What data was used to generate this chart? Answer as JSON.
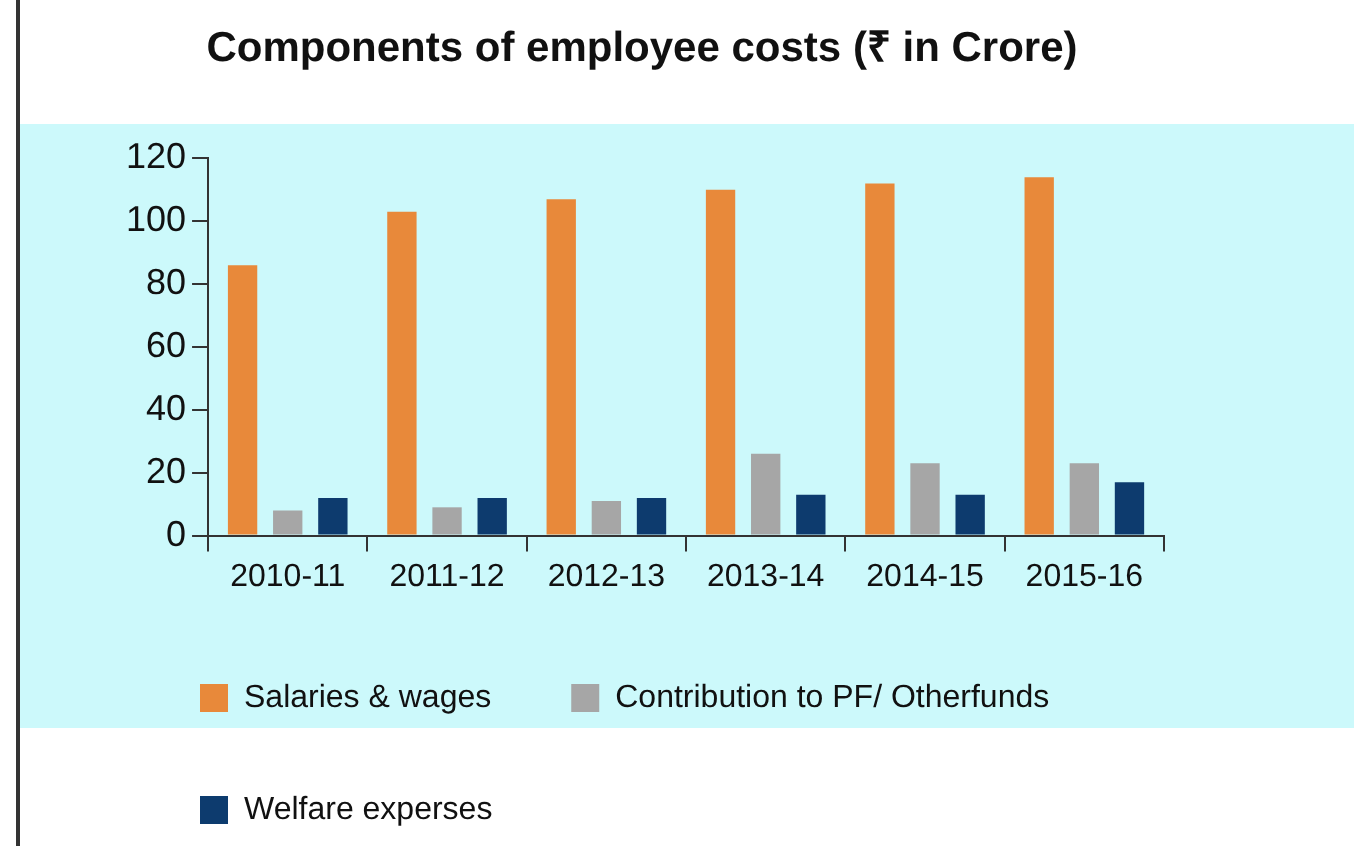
{
  "chart_data": {
    "type": "bar",
    "title": "Components of employee costs (₹ in Crore)",
    "categories": [
      "2010-11",
      "2011-12",
      "2012-13",
      "2013-14",
      "2014-15",
      "2015-16"
    ],
    "series": [
      {
        "name": "Salaries & wages",
        "color": "#e8893a",
        "values": [
          86,
          103,
          107,
          110,
          112,
          114
        ]
      },
      {
        "name": "Contribution to PF/ Otherfunds",
        "color": "#a6a6a6",
        "values": [
          8,
          9,
          11,
          26,
          23,
          23
        ]
      },
      {
        "name": "Welfare experses",
        "color": "#0d3b6e",
        "values": [
          12,
          12,
          12,
          13,
          13,
          17
        ]
      }
    ],
    "ylim": [
      0,
      120
    ],
    "yticks": [
      0,
      20,
      40,
      60,
      80,
      100,
      120
    ],
    "grid": false,
    "legend": "bottom left"
  }
}
